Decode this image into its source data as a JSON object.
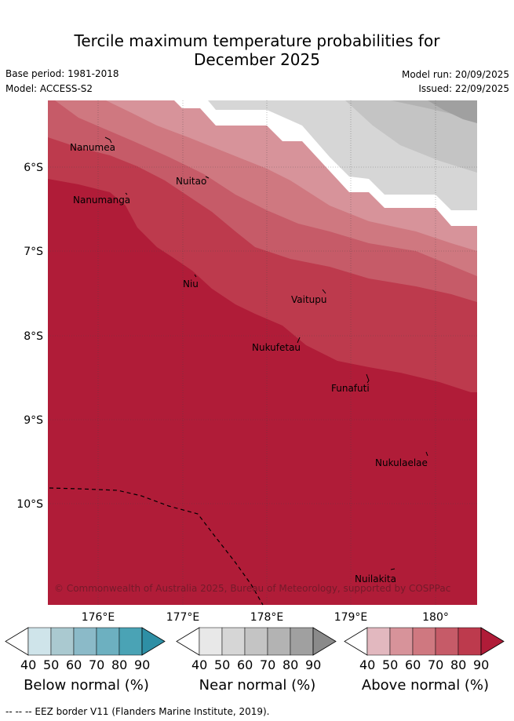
{
  "title": {
    "line1": "Tercile maximum temperature probabilities for",
    "line2": "December 2025"
  },
  "meta": {
    "base_period": "Base period: 1981-2018",
    "model": "Model: ACCESS-S2",
    "model_run": "Model run: 20/09/2025",
    "issued": "Issued: 22/09/2025"
  },
  "axes": {
    "lat_labels": [
      "6°S",
      "7°S",
      "8°S",
      "9°S",
      "10°S"
    ],
    "lon_labels": [
      "176°E",
      "177°E",
      "178°E",
      "179°E",
      "180°"
    ]
  },
  "places": {
    "nanumea": "Nanumea",
    "nuitao": "Nuitao",
    "nanumanga": "Nanumanga",
    "niu": "Niu",
    "vaitupu": "Vaitupu",
    "nukufetau": "Nukufetau",
    "funafuti": "Funafuti",
    "nukulaelae": "Nukulaelae",
    "nuilakita": "Nuilakita"
  },
  "copyright": "© Commonwealth of Australia 2025, Bureau of Meteorology, supported by COSPPac",
  "colorbars": [
    {
      "label": "Below normal (%)",
      "ticks": [
        "40",
        "50",
        "60",
        "70",
        "80",
        "90"
      ],
      "colors": [
        "#ffffff",
        "#cfe4ea",
        "#aac9d0",
        "#8bbac8",
        "#6db0c0",
        "#4aa3b5",
        "#2e8fa5"
      ]
    },
    {
      "label": "Near normal (%)",
      "ticks": [
        "40",
        "50",
        "60",
        "70",
        "80",
        "90"
      ],
      "colors": [
        "#ffffff",
        "#e8e8e8",
        "#d6d6d6",
        "#c4c4c4",
        "#b3b3b3",
        "#a0a0a0",
        "#8a8a8a"
      ]
    },
    {
      "label": "Above normal (%)",
      "ticks": [
        "40",
        "50",
        "60",
        "70",
        "80",
        "90"
      ],
      "colors": [
        "#ffffff",
        "#e2b8bf",
        "#d7939a",
        "#cf7880",
        "#c65b68",
        "#bd3a4d",
        "#b01c38"
      ]
    }
  ],
  "footer": "--  --  -- EEZ border V11 (Flanders Marine Institute, 2019)."
}
